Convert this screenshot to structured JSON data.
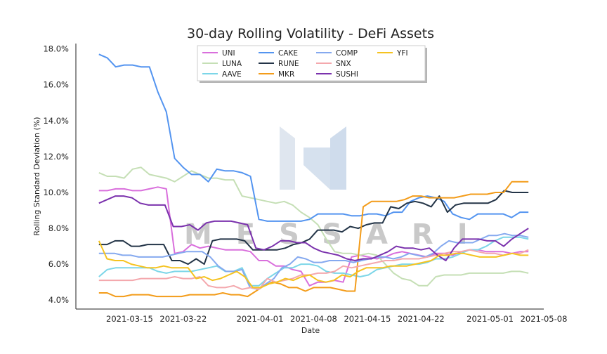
{
  "chart_data": {
    "type": "line",
    "title": "30-day Rolling Volatility - DeFi Assets",
    "xlabel": "Date",
    "ylabel": "Rolling Standard Deviation (%)",
    "ylim": [
      3.5,
      18.3
    ],
    "xlim": [
      "2021-03-08",
      "2021-05-08"
    ],
    "x_ticks": [
      "2021-03-15",
      "2021-03-22",
      "2021-04-01",
      "2021-04-08",
      "2021-04-15",
      "2021-04-22",
      "2021-05-01",
      "2021-05-08"
    ],
    "y_ticks": [
      "4.0%",
      "6.0%",
      "8.0%",
      "10.0%",
      "12.0%",
      "14.0%",
      "16.0%",
      "18.0%"
    ],
    "grid": false,
    "legend_placement": "top-center",
    "watermark": "MESSARI",
    "x_start": "2021-03-11",
    "series": [
      {
        "name": "UNI",
        "color": "#d96fdc",
        "values": [
          10.1,
          10.1,
          10.2,
          10.2,
          10.1,
          10.1,
          10.2,
          10.3,
          10.2,
          6.6,
          6.7,
          7.1,
          6.9,
          7.0,
          6.9,
          6.8,
          6.8,
          6.8,
          6.7,
          6.2,
          6.2,
          5.9,
          5.9,
          5.7,
          5.6,
          4.8,
          5.0,
          5.0,
          5.1,
          5.0,
          6.4,
          6.5,
          6.4,
          6.3,
          6.4,
          6.6,
          6.7,
          6.6,
          6.5,
          6.4,
          6.6,
          6.6,
          6.5,
          6.7,
          6.8,
          6.8,
          6.7,
          6.7,
          6.7,
          6.6,
          6.7,
          6.7
        ]
      },
      {
        "name": "LUNA",
        "color": "#c5dfb5",
        "values": [
          11.1,
          10.9,
          10.9,
          10.8,
          11.3,
          11.4,
          11.0,
          10.9,
          10.8,
          10.6,
          10.9,
          11.2,
          11.0,
          10.8,
          10.8,
          10.7,
          10.7,
          9.8,
          9.7,
          9.6,
          9.5,
          9.4,
          9.5,
          9.3,
          8.9,
          8.6,
          8.2,
          7.4,
          6.7,
          6.6,
          6.6,
          6.5,
          6.6,
          6.5,
          6.0,
          5.5,
          5.2,
          5.1,
          4.8,
          4.8,
          5.3,
          5.4,
          5.4,
          5.4,
          5.5,
          5.5,
          5.5,
          5.5,
          5.5,
          5.6,
          5.6,
          5.5
        ]
      },
      {
        "name": "AAVE",
        "color": "#7cd6e8",
        "values": [
          5.3,
          5.7,
          5.8,
          5.8,
          5.8,
          5.8,
          5.8,
          5.6,
          5.5,
          5.6,
          5.6,
          5.6,
          5.7,
          5.8,
          5.9,
          5.6,
          5.6,
          5.8,
          4.8,
          4.8,
          5.2,
          5.5,
          5.8,
          5.8,
          6.0,
          6.0,
          5.9,
          5.6,
          5.5,
          5.5,
          5.4,
          5.3,
          5.4,
          5.7,
          5.8,
          5.9,
          6.0,
          6.0,
          6.0,
          6.1,
          6.3,
          6.3,
          6.4,
          6.6,
          6.8,
          6.8,
          7.0,
          7.3,
          7.5,
          7.5,
          7.5,
          7.4
        ]
      },
      {
        "name": "CAKE",
        "color": "#5394f0",
        "values": [
          17.7,
          17.5,
          17.0,
          17.1,
          17.1,
          17.0,
          17.0,
          15.6,
          14.5,
          11.9,
          11.4,
          11.0,
          11.0,
          10.6,
          11.3,
          11.2,
          11.2,
          11.1,
          10.9,
          8.5,
          8.4,
          8.4,
          8.4,
          8.4,
          8.4,
          8.5,
          8.8,
          8.8,
          8.8,
          8.8,
          8.7,
          8.7,
          8.8,
          8.8,
          8.7,
          8.9,
          8.9,
          9.5,
          9.7,
          9.8,
          9.7,
          9.5,
          8.8,
          8.6,
          8.5,
          8.8,
          8.8,
          8.8,
          8.8,
          8.6,
          8.9,
          8.9
        ]
      },
      {
        "name": "RUNE",
        "color": "#233447",
        "values": [
          7.1,
          7.1,
          7.3,
          7.3,
          7.0,
          7.0,
          7.1,
          7.1,
          7.1,
          6.2,
          6.2,
          6.0,
          6.3,
          6.0,
          7.3,
          7.4,
          7.4,
          7.4,
          7.3,
          6.8,
          6.8,
          6.8,
          6.8,
          6.9,
          7.1,
          7.2,
          7.4,
          7.9,
          7.9,
          7.9,
          7.8,
          8.1,
          8.0,
          8.2,
          8.3,
          8.3,
          9.2,
          9.1,
          9.4,
          9.5,
          9.4,
          9.2,
          9.8,
          8.9,
          9.3,
          9.4,
          9.4,
          9.4,
          9.4,
          9.6,
          10.1,
          10.0,
          10.0,
          10.0
        ]
      },
      {
        "name": "MKR",
        "color": "#f39c1a",
        "values": [
          4.4,
          4.4,
          4.2,
          4.2,
          4.3,
          4.3,
          4.3,
          4.2,
          4.2,
          4.2,
          4.2,
          4.3,
          4.3,
          4.3,
          4.3,
          4.4,
          4.3,
          4.3,
          4.2,
          4.5,
          4.8,
          5.0,
          4.9,
          4.7,
          4.7,
          4.5,
          4.7,
          4.7,
          4.7,
          4.6,
          4.5,
          4.5,
          9.2,
          9.5,
          9.5,
          9.5,
          9.5,
          9.6,
          9.8,
          9.8,
          9.7,
          9.7,
          9.7,
          9.7,
          9.8,
          9.9,
          9.9,
          9.9,
          10.0,
          10.0,
          10.6,
          10.6,
          10.6
        ]
      },
      {
        "name": "COMP",
        "color": "#85a9ef",
        "values": [
          6.6,
          6.6,
          6.6,
          6.5,
          6.5,
          6.4,
          6.4,
          6.4,
          6.4,
          6.5,
          6.6,
          6.7,
          6.7,
          6.7,
          6.4,
          5.9,
          5.6,
          5.6,
          5.7,
          4.7,
          4.6,
          4.9,
          5.2,
          5.8,
          6.0,
          6.4,
          6.3,
          6.1,
          6.1,
          6.2,
          6.2,
          6.2,
          6.1,
          6.2,
          6.3,
          6.4,
          6.4,
          6.3,
          6.4,
          6.6,
          6.5,
          6.4,
          6.6,
          7.0,
          7.3,
          7.2,
          7.2,
          7.2,
          7.4,
          7.6,
          7.6,
          7.7,
          7.6,
          7.6,
          7.5
        ]
      },
      {
        "name": "SNX",
        "color": "#f4a8ad",
        "values": [
          5.1,
          5.1,
          5.1,
          5.1,
          5.1,
          5.2,
          5.2,
          5.2,
          5.2,
          5.3,
          5.2,
          5.2,
          5.3,
          4.8,
          4.7,
          4.7,
          4.8,
          4.6,
          4.7,
          4.6,
          5.2,
          5.0,
          5.1,
          5.2,
          5.4,
          5.4,
          5.5,
          5.5,
          5.6,
          5.9,
          5.8,
          5.9,
          6.0,
          6.1,
          6.2,
          6.2,
          6.3,
          6.3,
          6.3,
          6.4,
          6.5,
          6.6,
          6.7,
          6.7,
          6.8,
          6.7,
          6.6,
          6.6,
          6.5,
          6.6,
          6.6,
          6.8
        ]
      },
      {
        "name": "SUSHI",
        "color": "#7b32ad",
        "values": [
          9.4,
          9.6,
          9.8,
          9.8,
          9.7,
          9.4,
          9.3,
          9.3,
          9.3,
          8.1,
          8.1,
          8.2,
          7.9,
          8.3,
          8.4,
          8.4,
          8.4,
          8.3,
          8.2,
          6.9,
          6.8,
          7.0,
          7.3,
          7.3,
          7.2,
          7.2,
          6.9,
          6.7,
          6.6,
          6.5,
          6.3,
          6.2,
          6.3,
          6.3,
          6.5,
          6.7,
          7.0,
          6.9,
          6.9,
          6.8,
          6.9,
          6.5,
          6.2,
          6.9,
          7.4,
          7.4,
          7.4,
          7.3,
          7.3,
          7.0,
          7.4,
          7.7,
          8.0
        ]
      },
      {
        "name": "YFI",
        "color": "#f5c320",
        "values": [
          7.3,
          6.3,
          6.2,
          6.2,
          6.0,
          5.9,
          5.8,
          5.8,
          5.9,
          5.8,
          5.8,
          5.8,
          5.2,
          5.3,
          5.1,
          5.2,
          5.4,
          5.6,
          5.3,
          4.7,
          4.7,
          4.9,
          5.0,
          5.2,
          5.1,
          5.3,
          5.4,
          5.1,
          5.0,
          5.1,
          5.4,
          5.3,
          5.6,
          5.8,
          5.8,
          5.8,
          5.9,
          5.9,
          5.9,
          6.0,
          6.1,
          6.2,
          6.5,
          6.5,
          6.6,
          6.6,
          6.5,
          6.4,
          6.4,
          6.4,
          6.5,
          6.6,
          6.5,
          6.5
        ]
      }
    ]
  }
}
